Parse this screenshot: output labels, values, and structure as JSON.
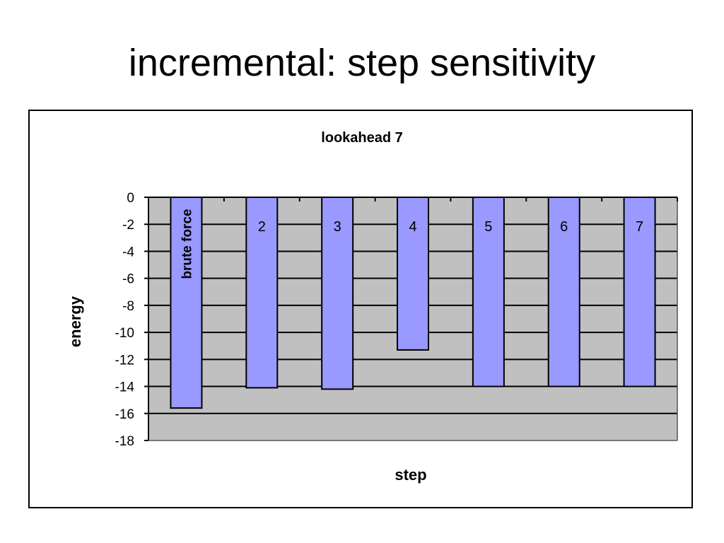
{
  "slide": {
    "title": "incremental: step sensitivity"
  },
  "chart_data": {
    "type": "bar",
    "title": "lookahead 7",
    "xlabel": "step",
    "ylabel": "energy",
    "categories": [
      "brute force",
      "2",
      "3",
      "4",
      "5",
      "6",
      "7"
    ],
    "values": [
      -15.6,
      -14.1,
      -14.2,
      -11.3,
      -14.0,
      -14.0,
      -14.0
    ],
    "ylim": [
      -18,
      0
    ],
    "yticks": [
      0,
      -2,
      -4,
      -6,
      -8,
      -10,
      -12,
      -14,
      -16,
      -18
    ],
    "grid": true,
    "legend": "none",
    "colors": {
      "bar": "#9999ff",
      "plot_background": "#c0c0c0",
      "gridline": "#000000"
    }
  }
}
